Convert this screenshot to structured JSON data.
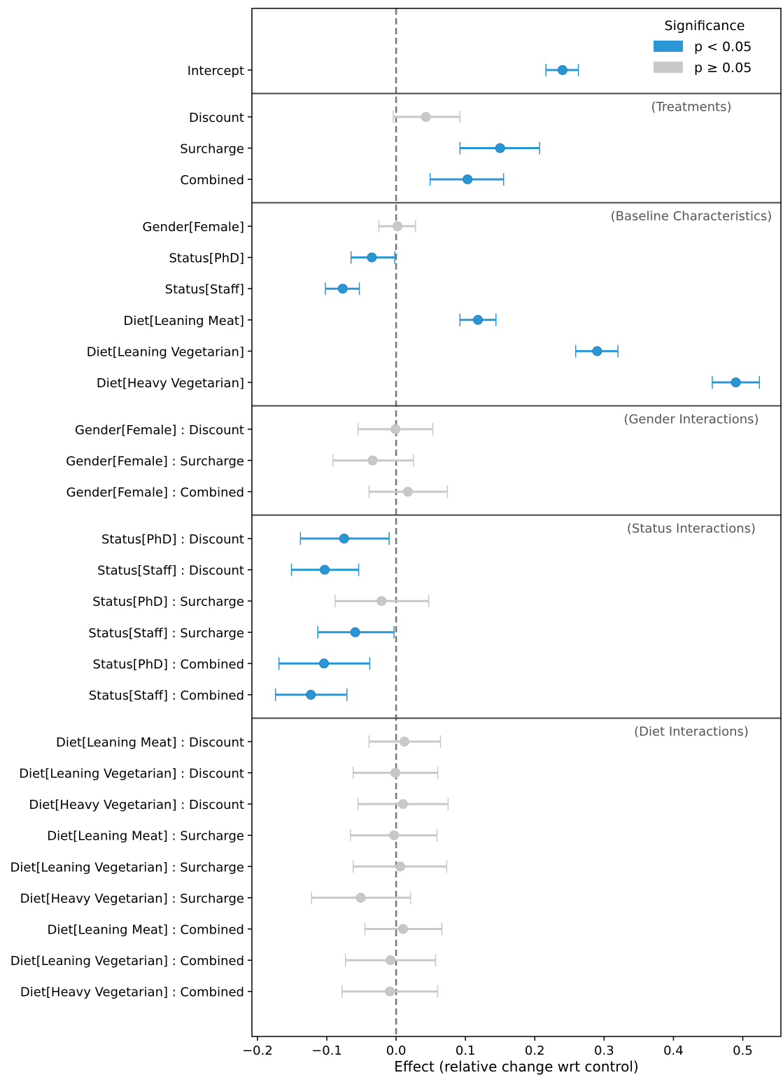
{
  "chart_data": {
    "type": "forest",
    "xlabel": "Effect (relative change wrt control)",
    "xlim": [
      -0.208,
      0.555
    ],
    "xticks": [
      -0.2,
      -0.1,
      0.0,
      0.1,
      0.2,
      0.3,
      0.4,
      0.5
    ],
    "xtick_labels": [
      "−0.2",
      "−0.1",
      "0.0",
      "0.1",
      "0.2",
      "0.3",
      "0.4",
      "0.5"
    ],
    "reference_line": 0,
    "legend": {
      "title": "Significance",
      "placement": "top-right",
      "entries": [
        {
          "label": "p < 0.05",
          "color": "#2a96d4"
        },
        {
          "label": "p ≥ 0.05",
          "color": "#c8c8c8"
        }
      ]
    },
    "colors": {
      "significant": "#2a96d4",
      "not_significant": "#c8c8c8"
    },
    "groups": [
      {
        "label": "",
        "rows": [
          {
            "term": "Intercept",
            "estimate": 0.24,
            "low": 0.216,
            "high": 0.263,
            "significant": true
          }
        ]
      },
      {
        "label": "(Treatments)",
        "rows": [
          {
            "term": "Discount",
            "estimate": 0.043,
            "low": -0.004,
            "high": 0.092,
            "significant": false
          },
          {
            "term": "Surcharge",
            "estimate": 0.15,
            "low": 0.092,
            "high": 0.207,
            "significant": true
          },
          {
            "term": "Combined",
            "estimate": 0.103,
            "low": 0.049,
            "high": 0.155,
            "significant": true
          }
        ]
      },
      {
        "label": "(Baseline Characteristics)",
        "rows": [
          {
            "term": "Gender[Female]",
            "estimate": 0.002,
            "low": -0.025,
            "high": 0.028,
            "significant": false
          },
          {
            "term": "Status[PhD]",
            "estimate": -0.035,
            "low": -0.065,
            "high": -0.002,
            "significant": true
          },
          {
            "term": "Status[Staff]",
            "estimate": -0.077,
            "low": -0.102,
            "high": -0.053,
            "significant": true
          },
          {
            "term": "Diet[Leaning Meat]",
            "estimate": 0.118,
            "low": 0.092,
            "high": 0.144,
            "significant": true
          },
          {
            "term": "Diet[Leaning Vegetarian]",
            "estimate": 0.29,
            "low": 0.259,
            "high": 0.32,
            "significant": true
          },
          {
            "term": "Diet[Heavy Vegetarian]",
            "estimate": 0.49,
            "low": 0.456,
            "high": 0.524,
            "significant": true
          }
        ]
      },
      {
        "label": "(Gender Interactions)",
        "rows": [
          {
            "term": "Gender[Female] : Discount",
            "estimate": -0.001,
            "low": -0.055,
            "high": 0.053,
            "significant": false
          },
          {
            "term": "Gender[Female] : Surcharge",
            "estimate": -0.034,
            "low": -0.091,
            "high": 0.025,
            "significant": false
          },
          {
            "term": "Gender[Female] : Combined",
            "estimate": 0.017,
            "low": -0.039,
            "high": 0.074,
            "significant": false
          }
        ]
      },
      {
        "label": "(Status Interactions)",
        "rows": [
          {
            "term": "Status[PhD] : Discount",
            "estimate": -0.075,
            "low": -0.138,
            "high": -0.01,
            "significant": true
          },
          {
            "term": "Status[Staff] : Discount",
            "estimate": -0.103,
            "low": -0.151,
            "high": -0.054,
            "significant": true
          },
          {
            "term": "Status[PhD] : Surcharge",
            "estimate": -0.021,
            "low": -0.088,
            "high": 0.047,
            "significant": false
          },
          {
            "term": "Status[Staff] : Surcharge",
            "estimate": -0.059,
            "low": -0.113,
            "high": -0.003,
            "significant": true
          },
          {
            "term": "Status[PhD] : Combined",
            "estimate": -0.104,
            "low": -0.169,
            "high": -0.038,
            "significant": true
          },
          {
            "term": "Status[Staff] : Combined",
            "estimate": -0.123,
            "low": -0.174,
            "high": -0.071,
            "significant": true
          }
        ]
      },
      {
        "label": "(Diet Interactions)",
        "rows": [
          {
            "term": "Diet[Leaning Meat] : Discount",
            "estimate": 0.012,
            "low": -0.039,
            "high": 0.064,
            "significant": false
          },
          {
            "term": "Diet[Leaning Vegetarian] : Discount",
            "estimate": -0.001,
            "low": -0.062,
            "high": 0.06,
            "significant": false
          },
          {
            "term": "Diet[Heavy Vegetarian] : Discount",
            "estimate": 0.01,
            "low": -0.055,
            "high": 0.075,
            "significant": false
          },
          {
            "term": "Diet[Leaning Meat] : Surcharge",
            "estimate": -0.003,
            "low": -0.066,
            "high": 0.059,
            "significant": false
          },
          {
            "term": "Diet[Leaning Vegetarian] : Surcharge",
            "estimate": 0.006,
            "low": -0.062,
            "high": 0.073,
            "significant": false
          },
          {
            "term": "Diet[Heavy Vegetarian] : Surcharge",
            "estimate": -0.051,
            "low": -0.122,
            "high": 0.021,
            "significant": false
          },
          {
            "term": "Diet[Leaning Meat] : Combined",
            "estimate": 0.01,
            "low": -0.045,
            "high": 0.066,
            "significant": false
          },
          {
            "term": "Diet[Leaning Vegetarian] : Combined",
            "estimate": -0.008,
            "low": -0.073,
            "high": 0.057,
            "significant": false
          },
          {
            "term": "Diet[Heavy Vegetarian] : Combined",
            "estimate": -0.009,
            "low": -0.078,
            "high": 0.06,
            "significant": false
          }
        ]
      }
    ]
  }
}
